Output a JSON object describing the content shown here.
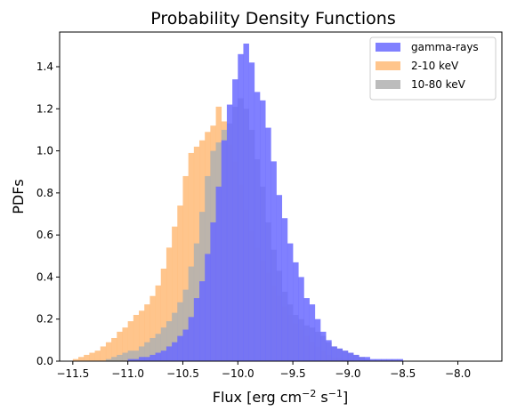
{
  "chart_data": {
    "type": "bar",
    "subtype": "histogram",
    "title": "Probability Density Functions",
    "xlabel": "Flux [erg cm",
    "xlabel_sup1": "−2",
    "xlabel_mid": " s",
    "xlabel_sup2": "−1",
    "xlabel_end": "]",
    "ylabel": "PDFs",
    "xlim": [
      -11.62,
      -7.6
    ],
    "ylim": [
      0,
      1.565
    ],
    "x_ticks": [
      -11.5,
      -11.0,
      -10.5,
      -10.0,
      -9.5,
      -9.0,
      -8.5,
      -8.0
    ],
    "x_tick_labels": [
      "−11.5",
      "−11.0",
      "−10.5",
      "−10.0",
      "−9.5",
      "−9.0",
      "−8.5",
      "−8.0"
    ],
    "y_ticks": [
      0.0,
      0.2,
      0.4,
      0.6,
      0.8,
      1.0,
      1.2,
      1.4
    ],
    "y_tick_labels": [
      "0.0",
      "0.2",
      "0.4",
      "0.6",
      "0.8",
      "1.0",
      "1.2",
      "1.4"
    ],
    "bin_width": 0.05,
    "legend_position": "top-right",
    "series": [
      {
        "name": "2-10 keV",
        "color": "#ffbb78",
        "opacity": 0.85,
        "bin_start": -11.5,
        "values": [
          0.01,
          0.02,
          0.03,
          0.04,
          0.05,
          0.07,
          0.09,
          0.11,
          0.14,
          0.16,
          0.19,
          0.22,
          0.24,
          0.27,
          0.31,
          0.36,
          0.44,
          0.54,
          0.64,
          0.74,
          0.88,
          0.99,
          1.02,
          1.05,
          1.09,
          1.12,
          1.21,
          1.14,
          1.03,
          0.95,
          0.84,
          0.72,
          0.62,
          0.54,
          0.48,
          0.42,
          0.36,
          0.31,
          0.26,
          0.22,
          0.18,
          0.15,
          0.12,
          0.09,
          0.07,
          0.05,
          0.03,
          0.02,
          0.02,
          0.01,
          0.01
        ]
      },
      {
        "name": "10-80 keV",
        "color": "#b0b0b0",
        "opacity": 0.85,
        "bin_start": -11.2,
        "values": [
          0.01,
          0.02,
          0.03,
          0.04,
          0.05,
          0.05,
          0.07,
          0.09,
          0.11,
          0.13,
          0.16,
          0.19,
          0.23,
          0.28,
          0.34,
          0.45,
          0.56,
          0.71,
          0.88,
          1.0,
          1.04,
          1.1,
          1.13,
          1.21,
          1.25,
          1.2,
          1.1,
          0.96,
          0.83,
          0.66,
          0.53,
          0.43,
          0.33,
          0.27,
          0.22,
          0.2,
          0.17,
          0.16,
          0.14,
          0.12,
          0.09,
          0.07,
          0.06,
          0.05,
          0.04,
          0.03,
          0.02,
          0.01
        ]
      },
      {
        "name": "gamma-rays",
        "color": "#6a6aff",
        "opacity": 0.85,
        "bin_start": -11.0,
        "values": [
          0.01,
          0.01,
          0.02,
          0.02,
          0.03,
          0.04,
          0.05,
          0.07,
          0.09,
          0.12,
          0.15,
          0.21,
          0.3,
          0.38,
          0.51,
          0.66,
          0.83,
          1.05,
          1.22,
          1.34,
          1.46,
          1.51,
          1.42,
          1.28,
          1.24,
          1.11,
          0.95,
          0.79,
          0.68,
          0.56,
          0.47,
          0.4,
          0.3,
          0.27,
          0.2,
          0.14,
          0.1,
          0.07,
          0.06,
          0.05,
          0.04,
          0.03,
          0.02,
          0.02,
          0.01,
          0.01,
          0.01,
          0.01,
          0.01,
          0.01
        ]
      }
    ],
    "legend_order": [
      "gamma-rays",
      "2-10 keV",
      "10-80 keV"
    ]
  }
}
